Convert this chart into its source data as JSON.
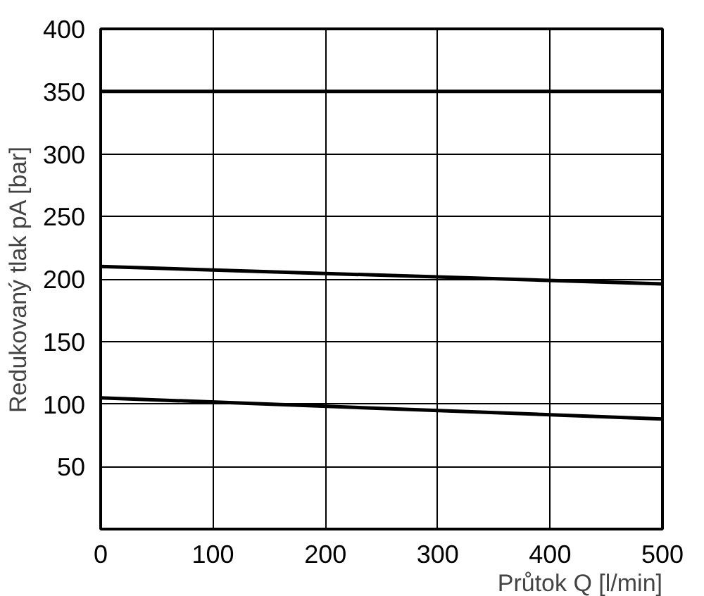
{
  "chart_data": {
    "type": "line",
    "xlabel": "Průtok Q [l/min]",
    "ylabel": "Redukovaný tlak pA [bar]",
    "xlim": [
      0,
      500
    ],
    "ylim": [
      0,
      400
    ],
    "xticks": [
      0,
      100,
      200,
      300,
      400,
      500
    ],
    "yticks": [
      50,
      100,
      150,
      200,
      250,
      300,
      350,
      400
    ],
    "grid": true,
    "line_style": "solid",
    "x": [
      0,
      500
    ],
    "ref_lines": [
      {
        "axis": "y",
        "value": 350,
        "color": "#000000"
      }
    ],
    "series": [
      {
        "color": "#000000",
        "values": [
          210,
          196
        ]
      },
      {
        "color": "#000000",
        "values": [
          105,
          88
        ]
      }
    ]
  }
}
